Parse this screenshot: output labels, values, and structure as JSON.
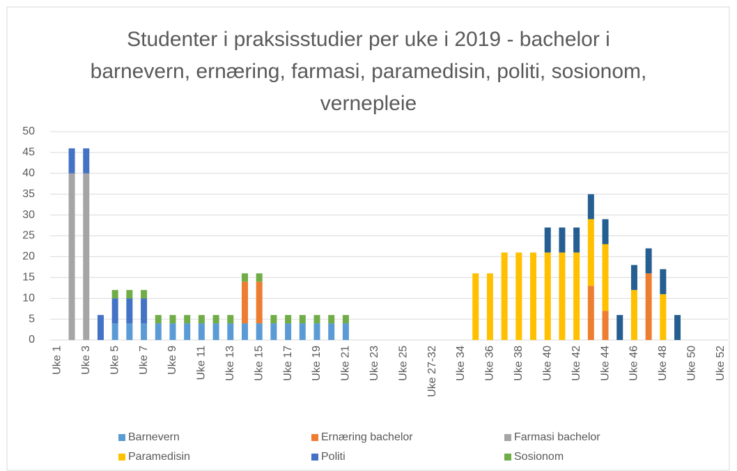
{
  "chart_data": {
    "type": "stacked_bar",
    "title": "Studenter i praksisstudier per uke i 2019 - bachelor i barnevern, ernæring, farmasi, paramedisin, politi, sosionom, vernepleie",
    "categories": [
      "Uke 1",
      null,
      "Uke 3",
      null,
      "Uke 5",
      null,
      "Uke 7",
      null,
      "Uke 9",
      null,
      "Uke 11",
      null,
      "Uke 13",
      null,
      "Uke 15",
      null,
      "Uke 17",
      null,
      "Uke 19",
      null,
      "Uke 21",
      null,
      "Uke 23",
      null,
      "Uke 25",
      null,
      "Uke 27-32",
      null,
      "Uke 34",
      null,
      "Uke 36",
      null,
      "Uke 38",
      null,
      "Uke 40",
      null,
      "Uke 42",
      null,
      "Uke 44",
      null,
      "Uke 46",
      null,
      "Uke 48",
      null,
      "Uke 50",
      null,
      "Uke 52"
    ],
    "series": [
      {
        "name": "Barnevern",
        "color": "#5b9bd5",
        "values": [
          null,
          null,
          null,
          null,
          4,
          4,
          4,
          4,
          4,
          4,
          4,
          4,
          4,
          4,
          4,
          4,
          4,
          4,
          4,
          4,
          4,
          null,
          null,
          null,
          null,
          null,
          null,
          null,
          null,
          null,
          null,
          null,
          null,
          null,
          null,
          null,
          null,
          null,
          null,
          null,
          null,
          null,
          null,
          null,
          null,
          null,
          null
        ]
      },
      {
        "name": "Ernæring bachelor",
        "color": "#ed7d31",
        "values": [
          null,
          null,
          null,
          null,
          null,
          null,
          null,
          null,
          null,
          null,
          null,
          null,
          null,
          10,
          10,
          null,
          null,
          null,
          null,
          null,
          null,
          null,
          null,
          null,
          null,
          null,
          null,
          null,
          null,
          null,
          null,
          null,
          null,
          null,
          null,
          null,
          null,
          13,
          7,
          null,
          null,
          16,
          null,
          null,
          null,
          null,
          null
        ]
      },
      {
        "name": "Farmasi bachelor",
        "color": "#a5a5a5",
        "values": [
          null,
          40,
          40,
          null,
          null,
          null,
          null,
          null,
          null,
          null,
          null,
          null,
          null,
          null,
          null,
          null,
          null,
          null,
          null,
          null,
          null,
          null,
          null,
          null,
          null,
          null,
          null,
          null,
          null,
          null,
          null,
          null,
          null,
          null,
          null,
          null,
          null,
          null,
          null,
          null,
          null,
          null,
          null,
          null,
          null,
          null,
          null
        ]
      },
      {
        "name": "Paramedisin",
        "color": "#ffc000",
        "values": [
          null,
          null,
          null,
          null,
          null,
          null,
          null,
          null,
          null,
          null,
          null,
          null,
          null,
          null,
          null,
          null,
          null,
          null,
          null,
          null,
          null,
          null,
          null,
          null,
          null,
          null,
          null,
          null,
          null,
          16,
          16,
          21,
          21,
          21,
          21,
          21,
          21,
          16,
          16,
          null,
          12,
          null,
          11,
          null,
          null,
          null,
          null
        ]
      },
      {
        "name": "Politi",
        "color": "#4472c4",
        "values": [
          null,
          6,
          6,
          6,
          6,
          6,
          6,
          null,
          null,
          null,
          null,
          null,
          null,
          null,
          null,
          null,
          null,
          null,
          null,
          null,
          null,
          null,
          null,
          null,
          null,
          null,
          null,
          null,
          null,
          null,
          null,
          null,
          null,
          null,
          null,
          null,
          null,
          null,
          null,
          null,
          null,
          null,
          null,
          null,
          null,
          null,
          null
        ]
      },
      {
        "name": "Sosionom",
        "color": "#70ad47",
        "values": [
          null,
          null,
          null,
          null,
          2,
          2,
          2,
          2,
          2,
          2,
          2,
          2,
          2,
          2,
          2,
          2,
          2,
          2,
          2,
          2,
          2,
          null,
          null,
          null,
          null,
          null,
          null,
          null,
          null,
          null,
          null,
          null,
          null,
          null,
          null,
          null,
          null,
          null,
          null,
          null,
          null,
          null,
          null,
          null,
          null,
          null,
          null
        ]
      },
      {
        "color": "#255e91",
        "values": [
          null,
          null,
          null,
          null,
          null,
          null,
          null,
          null,
          null,
          null,
          null,
          null,
          null,
          null,
          null,
          null,
          null,
          null,
          null,
          null,
          null,
          null,
          null,
          null,
          null,
          null,
          null,
          null,
          null,
          null,
          null,
          null,
          null,
          null,
          6,
          6,
          6,
          6,
          6,
          6,
          6,
          6,
          6,
          6,
          null,
          null,
          null
        ]
      }
    ],
    "ylim": [
      0,
      50
    ],
    "yticks": [
      0,
      5,
      10,
      15,
      20,
      25,
      30,
      35,
      40,
      45,
      50
    ],
    "grid": true,
    "legend": "bottom"
  }
}
